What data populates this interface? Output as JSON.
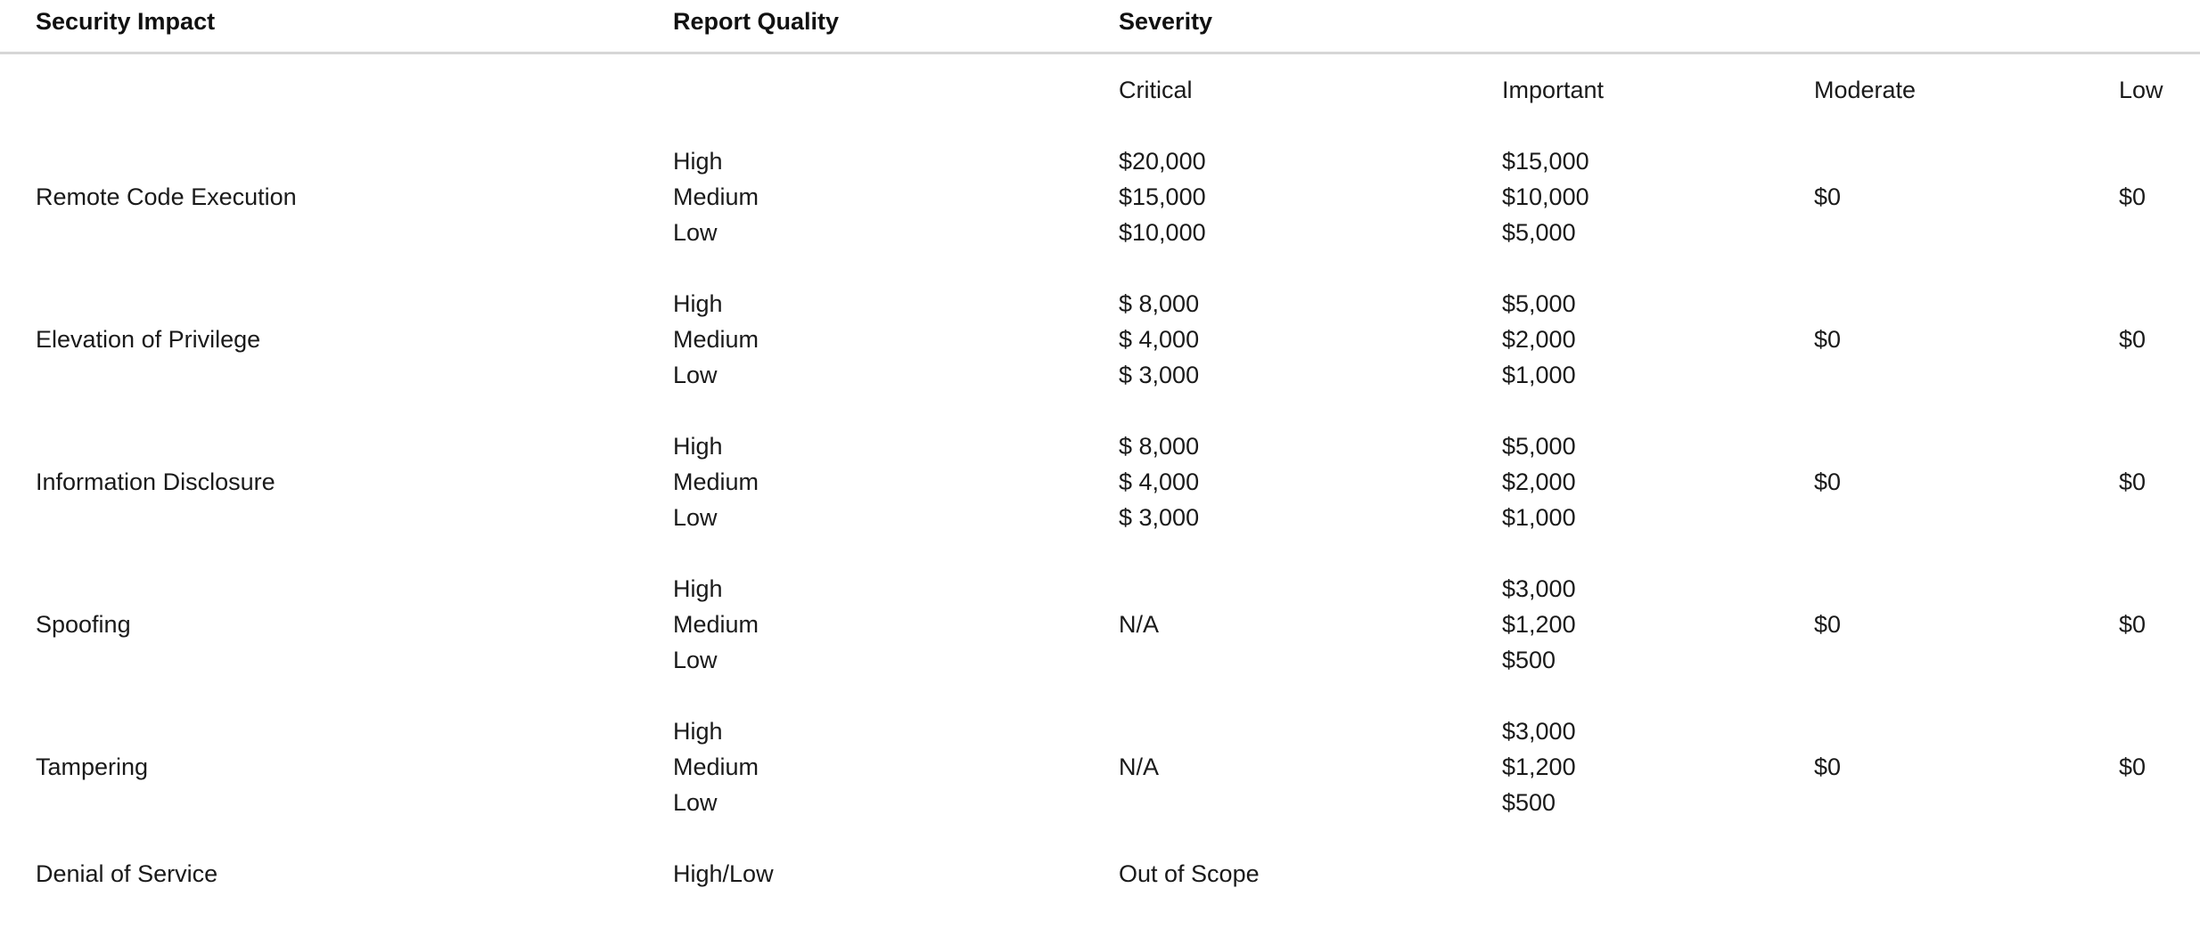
{
  "style": {
    "background_color": "#ffffff",
    "text_color": "#1a1a1a",
    "divider_color": "#d6d6d6"
  },
  "header": {
    "security_impact": "Security Impact",
    "report_quality": "Report Quality",
    "severity": "Severity"
  },
  "severity_levels": {
    "critical": "Critical",
    "important": "Important",
    "moderate": "Moderate",
    "low": "Low"
  },
  "rows": [
    {
      "impact": "Remote Code Execution",
      "quality": [
        "High",
        "Medium",
        "Low"
      ],
      "critical": [
        "$20,000",
        "$15,000",
        "$10,000"
      ],
      "important": [
        "$15,000",
        "$10,000",
        "$5,000"
      ],
      "moderate": "$0",
      "low": "$0"
    },
    {
      "impact": "Elevation of Privilege",
      "quality": [
        "High",
        "Medium",
        "Low"
      ],
      "critical": [
        "$ 8,000",
        "$ 4,000",
        "$ 3,000"
      ],
      "important": [
        "$5,000",
        "$2,000",
        "$1,000"
      ],
      "moderate": "$0",
      "low": "$0"
    },
    {
      "impact": "Information Disclosure",
      "quality": [
        "High",
        "Medium",
        "Low"
      ],
      "critical": [
        "$ 8,000",
        "$ 4,000",
        "$ 3,000"
      ],
      "important": [
        "$5,000",
        "$2,000",
        "$1,000"
      ],
      "moderate": "$0",
      "low": "$0"
    },
    {
      "impact": "Spoofing",
      "quality": [
        "High",
        "Medium",
        "Low"
      ],
      "critical_na": "N/A",
      "important": [
        "$3,000",
        "$1,200",
        "$500"
      ],
      "moderate": "$0",
      "low": "$0"
    },
    {
      "impact": "Tampering",
      "quality": [
        "High",
        "Medium",
        "Low"
      ],
      "critical_na": "N/A",
      "important": [
        "$3,000",
        "$1,200",
        "$500"
      ],
      "moderate": "$0",
      "low": "$0"
    },
    {
      "impact": "Denial of Service",
      "quality_single": "High/Low",
      "critical_single": "Out of Scope"
    }
  ]
}
